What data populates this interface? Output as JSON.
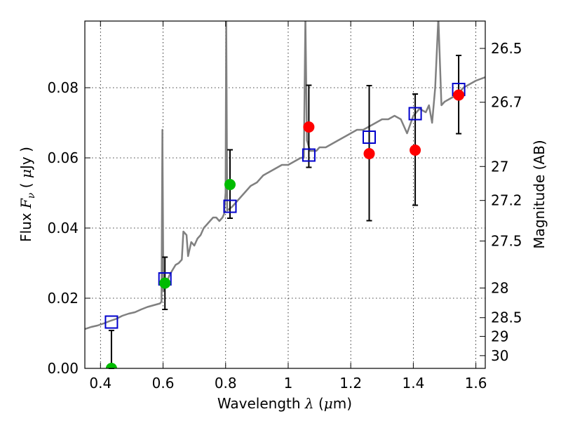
{
  "chart_data": {
    "type": "scatter",
    "xlabel": {
      "prefix": "Wavelength",
      "symbol": "λ",
      "unit_open": "(",
      "unit_mu": "μ",
      "unit_rest": "m)"
    },
    "ylabel": {
      "prefix": "Flux",
      "symbol_main": "F",
      "symbol_sub": "ν",
      "unit_open": "(",
      "unit_mu": "μ",
      "unit_rest": "Jy )"
    },
    "y2label": "Magnitude (AB)",
    "xlim": [
      0.35,
      1.63
    ],
    "ylim": [
      0.0,
      0.099
    ],
    "grid": true,
    "x_ticks": [
      "0.4",
      "0.6",
      "0.8",
      "1",
      "1.2",
      "1.4",
      "1.6"
    ],
    "y_ticks": [
      "0.00",
      "0.02",
      "0.04",
      "0.06",
      "0.08"
    ],
    "mag_ticks": [
      "26.5",
      "26.7",
      "27",
      "27.2",
      "27.5",
      "28",
      "28.5",
      "29",
      "30"
    ],
    "colors": {
      "spectrum": "#808080",
      "model": "#0000cc",
      "red": "#ff0000",
      "green": "#00bb00",
      "error": "#000000"
    },
    "spectrum": [
      [
        0.35,
        0.0112
      ],
      [
        0.37,
        0.0118
      ],
      [
        0.39,
        0.0122
      ],
      [
        0.41,
        0.0128
      ],
      [
        0.43,
        0.0135
      ],
      [
        0.45,
        0.0141
      ],
      [
        0.47,
        0.015
      ],
      [
        0.49,
        0.0156
      ],
      [
        0.51,
        0.016
      ],
      [
        0.53,
        0.0168
      ],
      [
        0.55,
        0.0175
      ],
      [
        0.57,
        0.018
      ],
      [
        0.59,
        0.0185
      ],
      [
        0.595,
        0.019
      ],
      [
        0.598,
        0.068
      ],
      [
        0.601,
        0.022
      ],
      [
        0.61,
        0.024
      ],
      [
        0.62,
        0.0265
      ],
      [
        0.63,
        0.028
      ],
      [
        0.64,
        0.0295
      ],
      [
        0.65,
        0.03
      ],
      [
        0.66,
        0.031
      ],
      [
        0.665,
        0.039
      ],
      [
        0.675,
        0.038
      ],
      [
        0.68,
        0.032
      ],
      [
        0.69,
        0.036
      ],
      [
        0.7,
        0.035
      ],
      [
        0.71,
        0.037
      ],
      [
        0.72,
        0.038
      ],
      [
        0.73,
        0.04
      ],
      [
        0.74,
        0.041
      ],
      [
        0.75,
        0.042
      ],
      [
        0.76,
        0.043
      ],
      [
        0.77,
        0.043
      ],
      [
        0.78,
        0.042
      ],
      [
        0.79,
        0.043
      ],
      [
        0.795,
        0.044
      ],
      [
        0.8,
        0.05
      ],
      [
        0.802,
        0.1
      ],
      [
        0.805,
        0.045
      ],
      [
        0.82,
        0.046
      ],
      [
        0.84,
        0.048
      ],
      [
        0.86,
        0.05
      ],
      [
        0.88,
        0.052
      ],
      [
        0.9,
        0.053
      ],
      [
        0.92,
        0.055
      ],
      [
        0.94,
        0.056
      ],
      [
        0.96,
        0.057
      ],
      [
        0.98,
        0.058
      ],
      [
        1.0,
        0.058
      ],
      [
        1.02,
        0.059
      ],
      [
        1.04,
        0.06
      ],
      [
        1.05,
        0.06
      ],
      [
        1.055,
        0.1
      ],
      [
        1.06,
        0.065
      ],
      [
        1.07,
        0.062
      ],
      [
        1.09,
        0.062
      ],
      [
        1.1,
        0.063
      ],
      [
        1.12,
        0.063
      ],
      [
        1.14,
        0.064
      ],
      [
        1.16,
        0.065
      ],
      [
        1.18,
        0.066
      ],
      [
        1.2,
        0.067
      ],
      [
        1.22,
        0.068
      ],
      [
        1.24,
        0.068
      ],
      [
        1.26,
        0.069
      ],
      [
        1.28,
        0.07
      ],
      [
        1.3,
        0.071
      ],
      [
        1.32,
        0.071
      ],
      [
        1.34,
        0.072
      ],
      [
        1.36,
        0.071
      ],
      [
        1.38,
        0.067
      ],
      [
        1.4,
        0.072
      ],
      [
        1.42,
        0.074
      ],
      [
        1.44,
        0.073
      ],
      [
        1.45,
        0.075
      ],
      [
        1.46,
        0.07
      ],
      [
        1.47,
        0.08
      ],
      [
        1.48,
        0.1
      ],
      [
        1.49,
        0.075
      ],
      [
        1.5,
        0.076
      ],
      [
        1.52,
        0.077
      ],
      [
        1.54,
        0.078
      ],
      [
        1.56,
        0.08
      ],
      [
        1.58,
        0.081
      ],
      [
        1.6,
        0.082
      ],
      [
        1.63,
        0.083
      ]
    ],
    "model_points": [
      {
        "x": 0.435,
        "y": 0.0132
      },
      {
        "x": 0.606,
        "y": 0.0255
      },
      {
        "x": 0.814,
        "y": 0.0462
      },
      {
        "x": 1.066,
        "y": 0.0608
      },
      {
        "x": 1.259,
        "y": 0.0659
      },
      {
        "x": 1.406,
        "y": 0.0726
      },
      {
        "x": 1.545,
        "y": 0.0795
      }
    ],
    "observed_points": [
      {
        "x": 0.435,
        "y": 0.0,
        "err_low": 0.0,
        "err_high": 0.0108,
        "color": "green"
      },
      {
        "x": 0.606,
        "y": 0.0243,
        "err_low": 0.0168,
        "err_high": 0.0317,
        "color": "green"
      },
      {
        "x": 0.814,
        "y": 0.0524,
        "err_low": 0.0428,
        "err_high": 0.0623,
        "color": "green"
      },
      {
        "x": 1.066,
        "y": 0.0688,
        "err_low": 0.0573,
        "err_high": 0.0807,
        "color": "red"
      },
      {
        "x": 1.259,
        "y": 0.0612,
        "err_low": 0.0421,
        "err_high": 0.0806,
        "color": "red"
      },
      {
        "x": 1.406,
        "y": 0.0622,
        "err_low": 0.0465,
        "err_high": 0.0782,
        "color": "red"
      },
      {
        "x": 1.545,
        "y": 0.0779,
        "err_low": 0.0669,
        "err_high": 0.0892,
        "color": "red"
      }
    ]
  }
}
